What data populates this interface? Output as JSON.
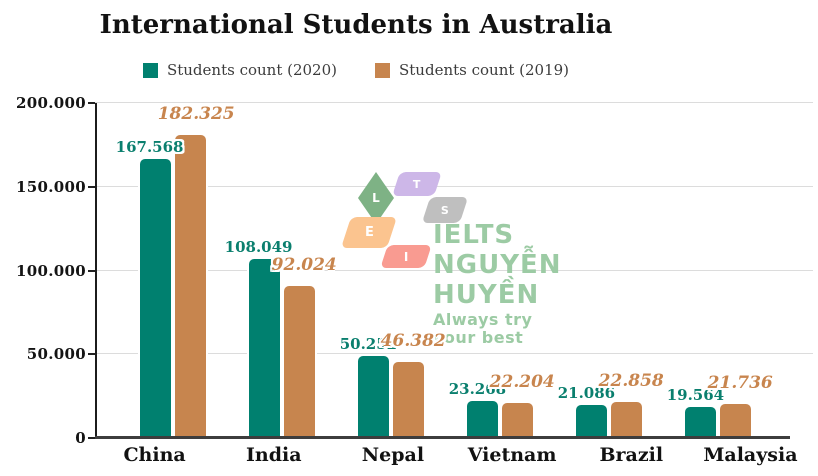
{
  "watermark": {
    "brand": "IELTS NGUYỄN HUYỀN",
    "tagline": "Always try your best",
    "text_color": "#9ccba4",
    "logo_letters": [
      {
        "letter": "L",
        "shape": "diamond",
        "color": "#7eb285"
      },
      {
        "letter": "T",
        "shape": "parallelogram",
        "color": "#cdb7e8"
      },
      {
        "letter": "S",
        "shape": "parallelogram",
        "color": "#bfbfbf"
      },
      {
        "letter": "E",
        "shape": "parallelogram",
        "color": "#fbc48f"
      },
      {
        "letter": "I",
        "shape": "parallelogram",
        "color": "#f99b91"
      }
    ]
  },
  "chart_data": {
    "type": "bar",
    "title": "International Students in Australia",
    "categories": [
      "China",
      "India",
      "Nepal",
      "Vietnam",
      "Brazil",
      "Malaysia"
    ],
    "series": [
      {
        "name": "Students count (2020)",
        "color": "#00806f",
        "values": [
          167568,
          108049,
          50252,
          23268,
          21086,
          19564
        ],
        "labels": [
          "167.568",
          "108.049",
          "50.252",
          "23.268",
          "21.086",
          "19.564"
        ]
      },
      {
        "name": "Students count (2019)",
        "color": "#c7854e",
        "values": [
          182325,
          92024,
          46382,
          22204,
          22858,
          21736
        ],
        "labels": [
          "182.325",
          "92.024",
          "46.382",
          "22.204",
          "22.858",
          "21.736"
        ]
      }
    ],
    "xlabel": "",
    "ylabel": "",
    "ylim": [
      0,
      200000
    ],
    "yticks": [
      {
        "label": "200.000",
        "value": 200000
      },
      {
        "label": "150.000",
        "value": 150000
      },
      {
        "label": "100.000",
        "value": 100000
      },
      {
        "label": "50.000",
        "value": 50000
      },
      {
        "label": "0",
        "value": 0
      }
    ],
    "grid": true,
    "legend_position": "top"
  }
}
